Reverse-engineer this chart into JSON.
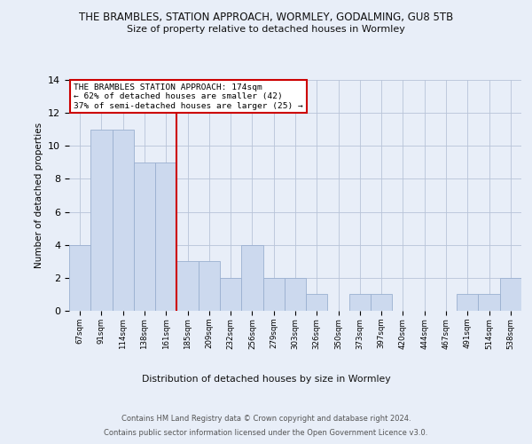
{
  "title": "THE BRAMBLES, STATION APPROACH, WORMLEY, GODALMING, GU8 5TB",
  "subtitle": "Size of property relative to detached houses in Wormley",
  "xlabel": "Distribution of detached houses by size in Wormley",
  "ylabel": "Number of detached properties",
  "categories": [
    "67sqm",
    "91sqm",
    "114sqm",
    "138sqm",
    "161sqm",
    "185sqm",
    "209sqm",
    "232sqm",
    "256sqm",
    "279sqm",
    "303sqm",
    "326sqm",
    "350sqm",
    "373sqm",
    "397sqm",
    "420sqm",
    "444sqm",
    "467sqm",
    "491sqm",
    "514sqm",
    "538sqm"
  ],
  "values": [
    4,
    11,
    11,
    9,
    9,
    3,
    3,
    2,
    4,
    2,
    2,
    1,
    0,
    1,
    1,
    0,
    0,
    0,
    1,
    1,
    2
  ],
  "bar_color": "#ccd9ee",
  "bar_edge_color": "#9ab0d0",
  "vline_x": 4.5,
  "vline_color": "#cc0000",
  "annotation_title": "THE BRAMBLES STATION APPROACH: 174sqm",
  "annotation_line1": "← 62% of detached houses are smaller (42)",
  "annotation_line2": "37% of semi-detached houses are larger (25) →",
  "annotation_box_color": "#ffffff",
  "annotation_box_edge": "#cc0000",
  "footer_line1": "Contains HM Land Registry data © Crown copyright and database right 2024.",
  "footer_line2": "Contains public sector information licensed under the Open Government Licence v3.0.",
  "ylim": [
    0,
    14
  ],
  "background_color": "#e8eef8",
  "plot_background": "#e8eef8"
}
